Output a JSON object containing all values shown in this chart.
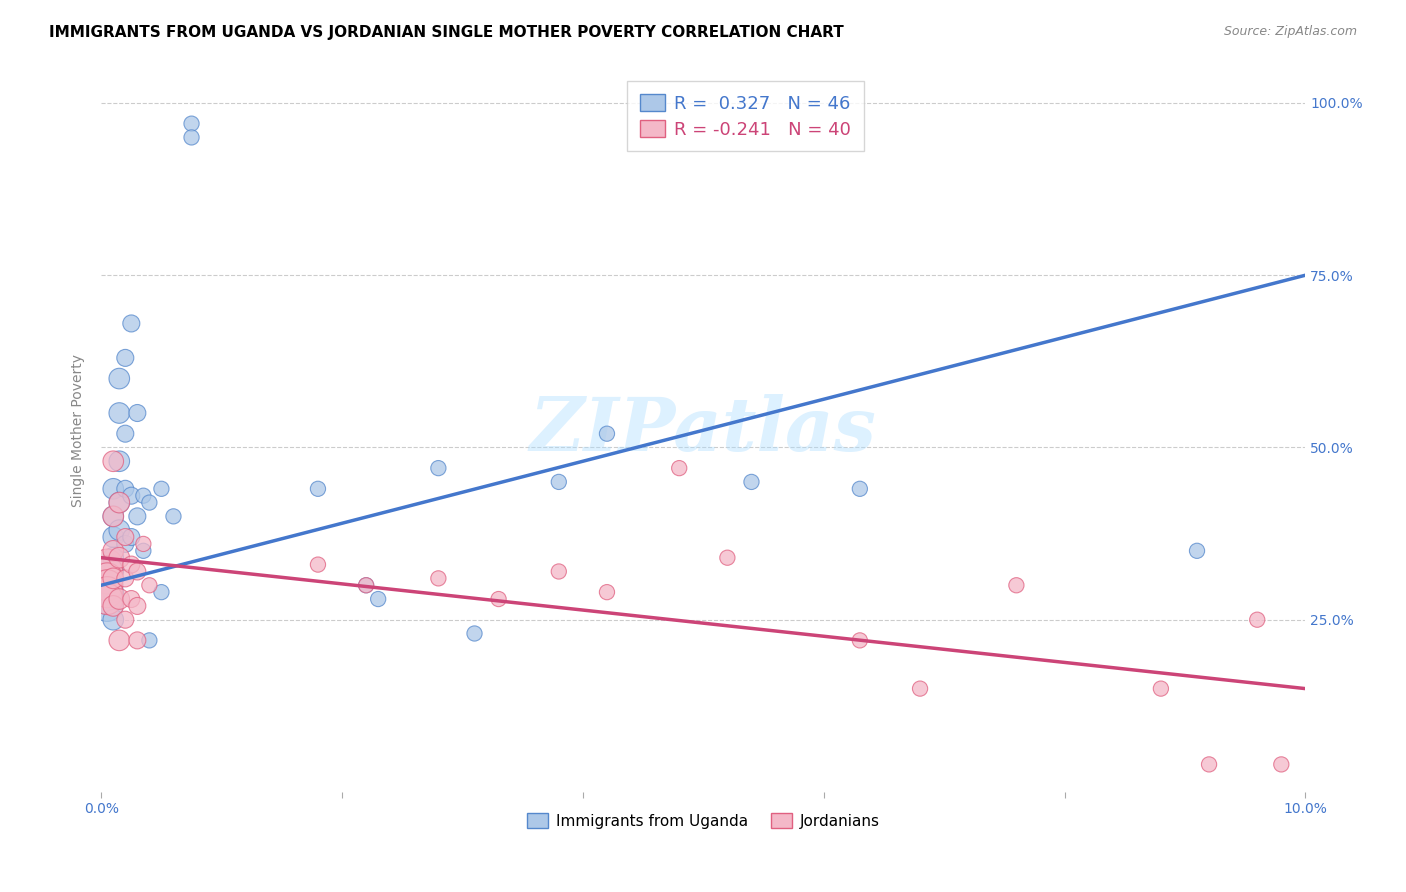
{
  "title": "IMMIGRANTS FROM UGANDA VS JORDANIAN SINGLE MOTHER POVERTY CORRELATION CHART",
  "source": "Source: ZipAtlas.com",
  "ylabel": "Single Mother Poverty",
  "title_fontsize": 11,
  "watermark": "ZIPatlas",
  "xlim": [
    0.0,
    0.1
  ],
  "ylim": [
    0.0,
    1.05
  ],
  "yticks": [
    0.25,
    0.5,
    0.75,
    1.0
  ],
  "ytick_labels": [
    "25.0%",
    "50.0%",
    "75.0%",
    "100.0%"
  ],
  "xticks": [
    0.0,
    0.02,
    0.04,
    0.06,
    0.08,
    0.1
  ],
  "xtick_labels": [
    "0.0%",
    "",
    "",
    "",
    "",
    "10.0%"
  ],
  "blue_color": "#adc8e8",
  "pink_color": "#f4b8c8",
  "blue_edge_color": "#5588cc",
  "pink_edge_color": "#e06080",
  "blue_line_color": "#4477cc",
  "pink_line_color": "#cc4477",
  "R_blue": 0.327,
  "N_blue": 46,
  "R_pink": -0.241,
  "N_pink": 40,
  "blue_line_x0": 0.0,
  "blue_line_y0": 0.3,
  "blue_line_x1": 0.1,
  "blue_line_y1": 0.75,
  "pink_line_x0": 0.0,
  "pink_line_y0": 0.34,
  "pink_line_x1": 0.1,
  "pink_line_y1": 0.15,
  "blue_x": [
    0.0005,
    0.0005,
    0.0005,
    0.0005,
    0.0005,
    0.0005,
    0.001,
    0.001,
    0.001,
    0.001,
    0.001,
    0.001,
    0.001,
    0.0015,
    0.0015,
    0.0015,
    0.0015,
    0.0015,
    0.002,
    0.002,
    0.002,
    0.002,
    0.0025,
    0.0025,
    0.0025,
    0.003,
    0.003,
    0.0035,
    0.0035,
    0.004,
    0.004,
    0.005,
    0.005,
    0.006,
    0.0075,
    0.0075,
    0.018,
    0.022,
    0.028,
    0.038,
    0.042,
    0.054,
    0.063,
    0.091,
    0.023,
    0.031
  ],
  "blue_y": [
    0.32,
    0.31,
    0.3,
    0.29,
    0.28,
    0.27,
    0.44,
    0.4,
    0.37,
    0.34,
    0.32,
    0.29,
    0.25,
    0.6,
    0.55,
    0.48,
    0.42,
    0.38,
    0.63,
    0.52,
    0.44,
    0.36,
    0.68,
    0.43,
    0.37,
    0.55,
    0.4,
    0.43,
    0.35,
    0.42,
    0.22,
    0.44,
    0.29,
    0.4,
    0.97,
    0.95,
    0.44,
    0.3,
    0.47,
    0.45,
    0.52,
    0.45,
    0.44,
    0.35,
    0.28,
    0.23
  ],
  "pink_x": [
    0.0005,
    0.0005,
    0.0005,
    0.0005,
    0.0005,
    0.0005,
    0.001,
    0.001,
    0.001,
    0.001,
    0.001,
    0.0015,
    0.0015,
    0.0015,
    0.0015,
    0.002,
    0.002,
    0.002,
    0.0025,
    0.0025,
    0.003,
    0.003,
    0.003,
    0.0035,
    0.004,
    0.018,
    0.022,
    0.028,
    0.033,
    0.038,
    0.042,
    0.048,
    0.052,
    0.063,
    0.068,
    0.076,
    0.088,
    0.092,
    0.096,
    0.098
  ],
  "pink_y": [
    0.33,
    0.32,
    0.31,
    0.3,
    0.29,
    0.28,
    0.48,
    0.4,
    0.35,
    0.31,
    0.27,
    0.42,
    0.34,
    0.28,
    0.22,
    0.37,
    0.31,
    0.25,
    0.33,
    0.28,
    0.32,
    0.27,
    0.22,
    0.36,
    0.3,
    0.33,
    0.3,
    0.31,
    0.28,
    0.32,
    0.29,
    0.47,
    0.34,
    0.22,
    0.15,
    0.3,
    0.15,
    0.04,
    0.25,
    0.04
  ]
}
